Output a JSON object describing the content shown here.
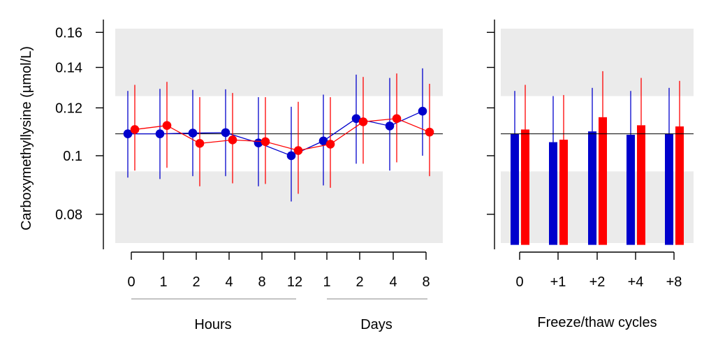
{
  "chart_data": [
    {
      "type": "line",
      "ylabel": "Carboxymethyllysine (µmol/L)",
      "yscale": "log",
      "ylim": [
        0.07,
        0.168
      ],
      "y_ticks": [
        0.08,
        0.1,
        0.12,
        0.14,
        0.16
      ],
      "y_tick_labels": [
        "0.08",
        "0.1",
        "0.12",
        "0.14",
        "0.16"
      ],
      "categories": [
        "0",
        "1",
        "2",
        "4",
        "8",
        "12",
        "1",
        "2",
        "4",
        "8"
      ],
      "groups": [
        {
          "label": "Hours",
          "from": 0,
          "to": 5
        },
        {
          "label": "Days",
          "from": 6,
          "to": 9
        }
      ],
      "reference_line": 0.1087,
      "reference_band_low": 0.0942,
      "reference_band_high": 0.1255,
      "series": [
        {
          "color": "#0000cc",
          "values": [
            0.1087,
            0.1087,
            0.109,
            0.1092,
            0.105,
            0.1,
            0.1058,
            0.1152,
            0.112,
            0.1185
          ],
          "lower": [
            0.092,
            0.0915,
            0.0925,
            0.0925,
            0.089,
            0.084,
            0.0893,
            0.097,
            0.0945,
            0.1
          ],
          "upper": [
            0.128,
            0.129,
            0.1285,
            0.1288,
            0.125,
            0.1205,
            0.1262,
            0.1362,
            0.1345,
            0.1395
          ]
        },
        {
          "color": "#ff0000",
          "values": [
            0.1105,
            0.1122,
            0.1048,
            0.1062,
            0.1055,
            0.102,
            0.1045,
            0.1138,
            0.1152,
            0.1094
          ],
          "lower": [
            0.0945,
            0.0955,
            0.089,
            0.09,
            0.0898,
            0.0865,
            0.0885,
            0.097,
            0.0975,
            0.0925
          ],
          "upper": [
            0.131,
            0.1325,
            0.125,
            0.127,
            0.125,
            0.1228,
            0.125,
            0.135,
            0.1368,
            0.1315
          ]
        }
      ]
    },
    {
      "type": "bar",
      "xlabel": "Freeze/thaw cycles",
      "yscale": "log",
      "ylim": [
        0.07,
        0.168
      ],
      "y_ticks": [
        0.08,
        0.1,
        0.12,
        0.14,
        0.16
      ],
      "categories": [
        "0",
        "+1",
        "+2",
        "+4",
        "+8"
      ],
      "bar_base": 0.0712,
      "reference_line": 0.1087,
      "reference_band_low": 0.0942,
      "reference_band_high": 0.1255,
      "series": [
        {
          "color": "#0000cc",
          "values": [
            0.1087,
            0.1053,
            0.1097,
            0.1083,
            0.1087
          ],
          "upper": [
            0.128,
            0.1255,
            0.1295,
            0.128,
            0.1295
          ]
        },
        {
          "color": "#ff0000",
          "values": [
            0.1105,
            0.1063,
            0.1158,
            0.1123,
            0.1118
          ],
          "upper": [
            0.131,
            0.126,
            0.138,
            0.1345,
            0.133
          ]
        }
      ]
    }
  ]
}
